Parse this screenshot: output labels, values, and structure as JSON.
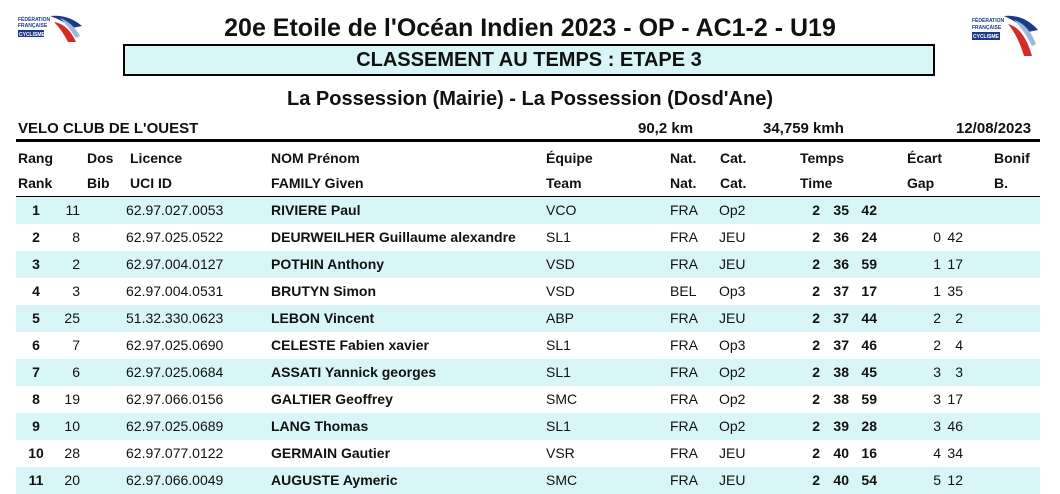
{
  "header": {
    "title": "20e Etoile de l'Océan Indien 2023 - OP - AC1-2 - U19",
    "subtitle": "CLASSEMENT AU TEMPS : ETAPE 3",
    "route": "La Possession (Mairie) - La Possession (Dosd'Ane)",
    "logo_text": [
      "FÉDÉRATION",
      "FRANÇAISE",
      "CYCLISME"
    ]
  },
  "info": {
    "organizer": "VELO CLUB DE L'OUEST",
    "distance": "90,2 km",
    "speed": "34,759 kmh",
    "date": "12/08/2023"
  },
  "columns": {
    "row1": [
      "Rang",
      "Dos",
      "Licence",
      "NOM Prénom",
      "Équipe",
      "Nat.",
      "Cat.",
      "Temps",
      "Écart",
      "Bonif"
    ],
    "row2": [
      "Rank",
      "Bib",
      "UCI ID",
      "FAMILY Given",
      "Team",
      "Nat.",
      "Cat.",
      "Time",
      "Gap",
      "B."
    ]
  },
  "riders": [
    {
      "rank": "1",
      "bib": "11",
      "licence": "62.97.027.0053",
      "name": "RIVIERE Paul",
      "team": "VCO",
      "nat": "FRA",
      "cat": "Op2",
      "time": [
        "2",
        "35",
        "42"
      ],
      "gap": [
        "",
        ""
      ]
    },
    {
      "rank": "2",
      "bib": "8",
      "licence": "62.97.025.0522",
      "name": "DEURWEILHER Guillaume alexandre",
      "team": "SL1",
      "nat": "FRA",
      "cat": "JEU",
      "time": [
        "2",
        "36",
        "24"
      ],
      "gap": [
        "0",
        "42"
      ]
    },
    {
      "rank": "3",
      "bib": "2",
      "licence": "62.97.004.0127",
      "name": "POTHIN Anthony",
      "team": "VSD",
      "nat": "FRA",
      "cat": "JEU",
      "time": [
        "2",
        "36",
        "59"
      ],
      "gap": [
        "1",
        "17"
      ]
    },
    {
      "rank": "4",
      "bib": "3",
      "licence": "62.97.004.0531",
      "name": "BRUTYN Simon",
      "team": "VSD",
      "nat": "BEL",
      "cat": "Op3",
      "time": [
        "2",
        "37",
        "17"
      ],
      "gap": [
        "1",
        "35"
      ]
    },
    {
      "rank": "5",
      "bib": "25",
      "licence": "51.32.330.0623",
      "name": "LEBON Vincent",
      "team": "ABP",
      "nat": "FRA",
      "cat": "JEU",
      "time": [
        "2",
        "37",
        "44"
      ],
      "gap": [
        "2",
        "2"
      ]
    },
    {
      "rank": "6",
      "bib": "7",
      "licence": "62.97.025.0690",
      "name": "CELESTE Fabien xavier",
      "team": "SL1",
      "nat": "FRA",
      "cat": "Op3",
      "time": [
        "2",
        "37",
        "46"
      ],
      "gap": [
        "2",
        "4"
      ]
    },
    {
      "rank": "7",
      "bib": "6",
      "licence": "62.97.025.0684",
      "name": "ASSATI Yannick georges",
      "team": "SL1",
      "nat": "FRA",
      "cat": "Op2",
      "time": [
        "2",
        "38",
        "45"
      ],
      "gap": [
        "3",
        "3"
      ]
    },
    {
      "rank": "8",
      "bib": "19",
      "licence": "62.97.066.0156",
      "name": "GALTIER Geoffrey",
      "team": "SMC",
      "nat": "FRA",
      "cat": "Op2",
      "time": [
        "2",
        "38",
        "59"
      ],
      "gap": [
        "3",
        "17"
      ]
    },
    {
      "rank": "9",
      "bib": "10",
      "licence": "62.97.025.0689",
      "name": "LANG Thomas",
      "team": "SL1",
      "nat": "FRA",
      "cat": "Op2",
      "time": [
        "2",
        "39",
        "28"
      ],
      "gap": [
        "3",
        "46"
      ]
    },
    {
      "rank": "10",
      "bib": "28",
      "licence": "62.97.077.0122",
      "name": "GERMAIN Gautier",
      "team": "VSR",
      "nat": "FRA",
      "cat": "JEU",
      "time": [
        "2",
        "40",
        "16"
      ],
      "gap": [
        "4",
        "34"
      ]
    },
    {
      "rank": "11",
      "bib": "20",
      "licence": "62.97.066.0049",
      "name": "AUGUSTE Aymeric",
      "team": "SMC",
      "nat": "FRA",
      "cat": "JEU",
      "time": [
        "2",
        "40",
        "54"
      ],
      "gap": [
        "5",
        "12"
      ]
    }
  ]
}
